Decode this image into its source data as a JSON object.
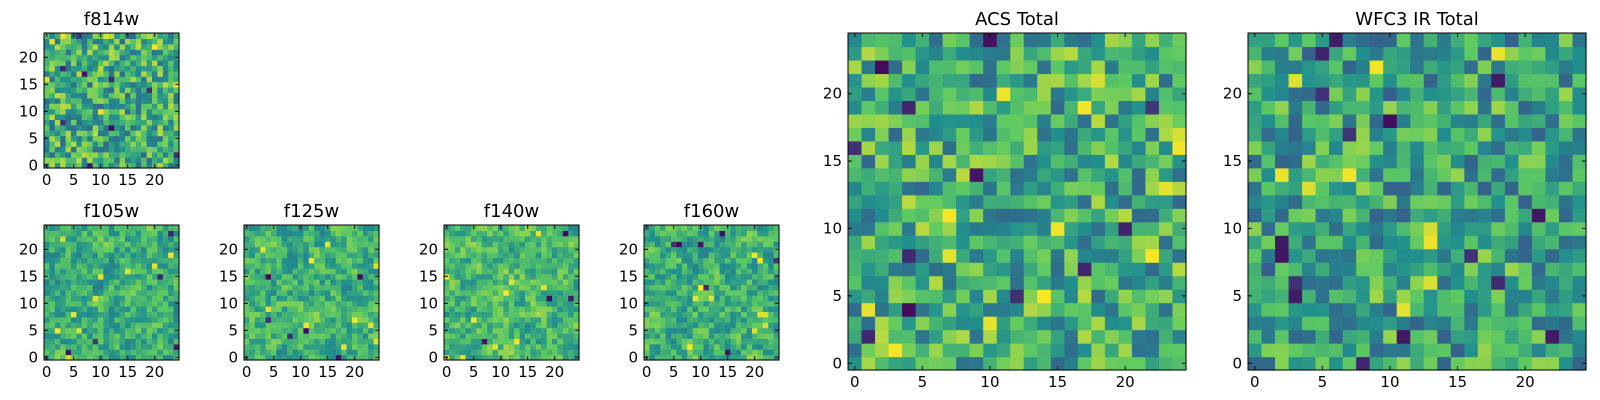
{
  "figure": {
    "description_colormap": "viridis",
    "colormap_stops": [
      "#440154",
      "#3b528b",
      "#21908d",
      "#5dc963",
      "#fde725"
    ]
  },
  "chart_data": [
    {
      "type": "heatmap",
      "title": "f814w",
      "grid_size": 25,
      "value_range": [
        0,
        1
      ],
      "xticks": [
        "0",
        "5",
        "10",
        "15",
        "20"
      ],
      "yticks": [
        "0",
        "5",
        "10",
        "15",
        "20"
      ],
      "seed": 814,
      "smooth": 0,
      "dark_spots": 10,
      "bright_spots": 8,
      "bias": 0.62
    },
    {
      "type": "heatmap",
      "title": "f105w",
      "grid_size": 25,
      "value_range": [
        0,
        1
      ],
      "xticks": [
        "0",
        "5",
        "10",
        "15",
        "20"
      ],
      "yticks": [
        "0",
        "5",
        "10",
        "15",
        "20"
      ],
      "seed": 105,
      "smooth": 1,
      "dark_spots": 5,
      "bright_spots": 10,
      "bias": 0.62
    },
    {
      "type": "heatmap",
      "title": "f125w",
      "grid_size": 25,
      "value_range": [
        0,
        1
      ],
      "xticks": [
        "0",
        "5",
        "10",
        "15",
        "20"
      ],
      "yticks": [
        "0",
        "5",
        "10",
        "15",
        "20"
      ],
      "seed": 125,
      "smooth": 1,
      "dark_spots": 6,
      "bright_spots": 10,
      "bias": 0.64
    },
    {
      "type": "heatmap",
      "title": "f140w",
      "grid_size": 25,
      "value_range": [
        0,
        1
      ],
      "xticks": [
        "0",
        "5",
        "10",
        "15",
        "20"
      ],
      "yticks": [
        "0",
        "5",
        "10",
        "15",
        "20"
      ],
      "seed": 140,
      "smooth": 1,
      "dark_spots": 4,
      "bright_spots": 10,
      "bias": 0.66
    },
    {
      "type": "heatmap",
      "title": "f160w",
      "grid_size": 25,
      "value_range": [
        0,
        1
      ],
      "xticks": [
        "0",
        "5",
        "10",
        "15",
        "20"
      ],
      "yticks": [
        "0",
        "5",
        "10",
        "15",
        "20"
      ],
      "seed": 160,
      "smooth": 1,
      "dark_spots": 7,
      "bright_spots": 10,
      "bias": 0.63
    },
    {
      "type": "heatmap",
      "title": "ACS Total",
      "grid_size": 25,
      "value_range": [
        0,
        1
      ],
      "xticks": [
        "0",
        "5",
        "10",
        "15",
        "20"
      ],
      "yticks": [
        "0",
        "5",
        "10",
        "15",
        "20"
      ],
      "seed": 7,
      "smooth": 0,
      "dark_spots": 12,
      "bright_spots": 14,
      "bias": 0.62
    },
    {
      "type": "heatmap",
      "title": "WFC3 IR Total",
      "grid_size": 25,
      "value_range": [
        0,
        1
      ],
      "xticks": [
        "0",
        "5",
        "10",
        "15",
        "20"
      ],
      "yticks": [
        "0",
        "5",
        "10",
        "15",
        "20"
      ],
      "seed": 31,
      "smooth": 0,
      "dark_spots": 16,
      "bright_spots": 10,
      "bias": 0.58
    }
  ]
}
